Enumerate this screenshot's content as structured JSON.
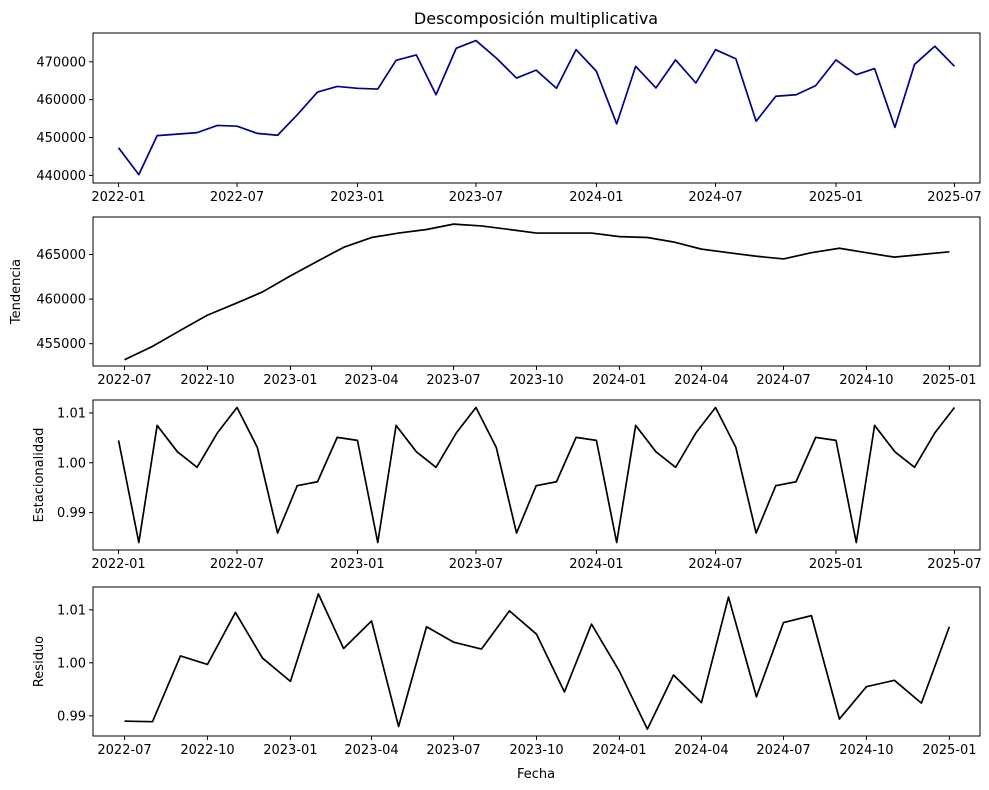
{
  "figure": {
    "title": "Descomposición multiplicativa",
    "xlabel": "Fecha"
  },
  "chart_data": [
    {
      "type": "line",
      "title": "Descomposición multiplicativa",
      "ylabel": "",
      "color": "#00008b",
      "x_range": [
        "2021-11-23",
        "2025-08-09"
      ],
      "ylim": [
        438000,
        477600
      ],
      "x_ticks": [
        "2022-01",
        "2022-07",
        "2023-01",
        "2023-07",
        "2024-01",
        "2024-07",
        "2025-01",
        "2025-07"
      ],
      "y_ticks": [
        440000,
        450000,
        460000,
        470000
      ],
      "y_tick_labels": [
        "440000",
        "450000",
        "460000",
        "470000"
      ],
      "series": [
        {
          "x": [
            "2022-01",
            "2022-02",
            "2022-03",
            "2022-04",
            "2022-05",
            "2022-06",
            "2022-07",
            "2022-08",
            "2022-09",
            "2022-10",
            "2022-11",
            "2022-12",
            "2023-01",
            "2023-02",
            "2023-03",
            "2023-04",
            "2023-05",
            "2023-06",
            "2023-07",
            "2023-08",
            "2023-09",
            "2023-10",
            "2023-11",
            "2023-12",
            "2024-01",
            "2024-02",
            "2024-03",
            "2024-04",
            "2024-05",
            "2024-06",
            "2024-07",
            "2024-08",
            "2024-09",
            "2024-10",
            "2024-11",
            "2024-12",
            "2025-01",
            "2025-02",
            "2025-03",
            "2025-04",
            "2025-05",
            "2025-06",
            "2025-07"
          ],
          "values": [
            447300,
            440200,
            450500,
            450900,
            451300,
            453200,
            453000,
            451100,
            450600,
            456000,
            462000,
            463500,
            463000,
            462800,
            470400,
            471800,
            461300,
            473600,
            475600,
            471000,
            465700,
            467800,
            463000,
            473200,
            467500,
            453600,
            468800,
            463100,
            470500,
            464400,
            473200,
            470800,
            454300,
            460900,
            461300,
            463700,
            470500,
            466600,
            468200,
            452700,
            469300,
            474100,
            468800
          ]
        }
      ]
    },
    {
      "type": "line",
      "ylabel": "Tendencia",
      "color": "#000000",
      "x_range": [
        "2022-05-27",
        "2025-02-04"
      ],
      "ylim": [
        452500,
        469200
      ],
      "x_ticks": [
        "2022-07",
        "2022-10",
        "2023-01",
        "2023-04",
        "2023-07",
        "2023-10",
        "2024-01",
        "2024-04",
        "2024-07",
        "2024-10",
        "2025-01"
      ],
      "y_ticks": [
        455000,
        460000,
        465000
      ],
      "y_tick_labels": [
        "455000",
        "460000",
        "465000"
      ],
      "series": [
        {
          "x": [
            "2022-07",
            "2022-08",
            "2022-09",
            "2022-10",
            "2022-11",
            "2022-12",
            "2023-01",
            "2023-02",
            "2023-03",
            "2023-04",
            "2023-05",
            "2023-06",
            "2023-07",
            "2023-08",
            "2023-09",
            "2023-10",
            "2023-11",
            "2023-12",
            "2024-01",
            "2024-02",
            "2024-03",
            "2024-04",
            "2024-05",
            "2024-06",
            "2024-07",
            "2024-08",
            "2024-09",
            "2024-10",
            "2024-11",
            "2024-12",
            "2025-01"
          ],
          "values": [
            453200,
            454700,
            456500,
            458200,
            459500,
            460800,
            462600,
            464300,
            465800,
            466900,
            467400,
            467800,
            468400,
            468200,
            467800,
            467400,
            467400,
            467400,
            467000,
            466900,
            466400,
            465600,
            465200,
            464800,
            464500,
            465200,
            465700,
            465200,
            464700,
            465000,
            465300
          ]
        }
      ]
    },
    {
      "type": "line",
      "ylabel": "Estacionalidad",
      "color": "#000000",
      "x_range": [
        "2021-11-23",
        "2025-08-09"
      ],
      "ylim": [
        0.9825,
        1.0126
      ],
      "x_ticks": [
        "2022-01",
        "2022-07",
        "2023-01",
        "2023-07",
        "2024-01",
        "2024-07",
        "2025-01",
        "2025-07"
      ],
      "y_ticks": [
        0.99,
        1.0,
        1.01
      ],
      "y_tick_labels": [
        "0.99",
        "1.00",
        "1.01"
      ],
      "series": [
        {
          "x": [
            "2022-01",
            "2022-02",
            "2022-03",
            "2022-04",
            "2022-05",
            "2022-06",
            "2022-07",
            "2022-08",
            "2022-09",
            "2022-10",
            "2022-11",
            "2022-12",
            "2023-01",
            "2023-02",
            "2023-03",
            "2023-04",
            "2023-05",
            "2023-06",
            "2023-07",
            "2023-08",
            "2023-09",
            "2023-10",
            "2023-11",
            "2023-12",
            "2024-01",
            "2024-02",
            "2024-03",
            "2024-04",
            "2024-05",
            "2024-06",
            "2024-07",
            "2024-08",
            "2024-09",
            "2024-10",
            "2024-11",
            "2024-12",
            "2025-01",
            "2025-02",
            "2025-03",
            "2025-04",
            "2025-05",
            "2025-06",
            "2025-07"
          ],
          "values": [
            1.0045,
            0.984,
            1.0075,
            1.0022,
            0.9991,
            1.006,
            1.0111,
            1.0031,
            0.9859,
            0.9954,
            0.9962,
            1.0051,
            1.0045,
            0.984,
            1.0075,
            1.0022,
            0.9991,
            1.006,
            1.0111,
            1.0031,
            0.9859,
            0.9954,
            0.9962,
            1.0051,
            1.0045,
            0.984,
            1.0075,
            1.0022,
            0.9991,
            1.006,
            1.0111,
            1.0031,
            0.9859,
            0.9954,
            0.9962,
            1.0051,
            1.0045,
            0.984,
            1.0075,
            1.0022,
            0.9991,
            1.006,
            1.0111
          ]
        }
      ]
    },
    {
      "type": "line",
      "ylabel": "Residuo",
      "color": "#000000",
      "x_range": [
        "2022-05-27",
        "2025-02-04"
      ],
      "ylim": [
        0.9862,
        1.0143
      ],
      "x_ticks": [
        "2022-07",
        "2022-10",
        "2023-01",
        "2023-04",
        "2023-07",
        "2023-10",
        "2024-01",
        "2024-04",
        "2024-07",
        "2024-10",
        "2025-01"
      ],
      "y_ticks": [
        0.99,
        1.0,
        1.01
      ],
      "y_tick_labels": [
        "0.99",
        "1.00",
        "1.01"
      ],
      "series": [
        {
          "x": [
            "2022-07",
            "2022-08",
            "2022-09",
            "2022-10",
            "2022-11",
            "2022-12",
            "2023-01",
            "2023-02",
            "2023-03",
            "2023-04",
            "2023-05",
            "2023-06",
            "2023-07",
            "2023-08",
            "2023-09",
            "2023-10",
            "2023-11",
            "2023-12",
            "2024-01",
            "2024-02",
            "2024-03",
            "2024-04",
            "2024-05",
            "2024-06",
            "2024-07",
            "2024-08",
            "2024-09",
            "2024-10",
            "2024-11",
            "2024-12",
            "2025-01"
          ],
          "values": [
            0.989,
            0.9889,
            1.0013,
            0.9997,
            1.0095,
            1.0009,
            0.9965,
            1.013,
            1.0027,
            1.0079,
            0.988,
            1.0068,
            1.0039,
            1.0026,
            1.0098,
            1.0054,
            0.9945,
            1.0073,
            0.9984,
            0.9875,
            0.9977,
            0.9925,
            1.0124,
            0.9936,
            1.0076,
            1.0089,
            0.9894,
            0.9955,
            0.9967,
            0.9924,
            1.0068
          ]
        }
      ]
    }
  ]
}
